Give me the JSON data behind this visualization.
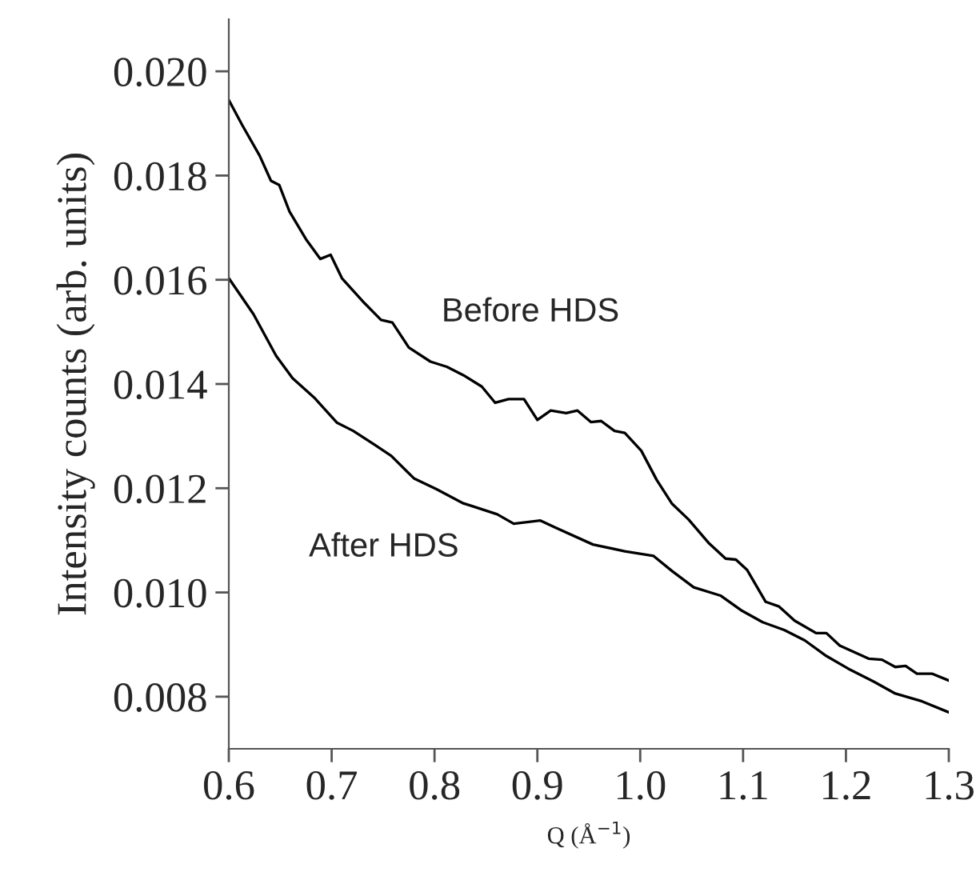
{
  "chart_data": {
    "type": "line",
    "xlabel": "Q (Å$^{−1}$)",
    "ylabel": "Intensity counts (arb. units)",
    "xlim": [
      0.6,
      1.3
    ],
    "xticks": [
      {
        "value": 0.6,
        "label": "0.6"
      },
      {
        "value": 0.7,
        "label": "0.7"
      },
      {
        "value": 0.8,
        "label": "0.8"
      },
      {
        "value": 0.9,
        "label": "0.9"
      },
      {
        "value": 1.0,
        "label": "1.0"
      },
      {
        "value": 1.1,
        "label": "1.1"
      },
      {
        "value": 1.2,
        "label": "1.2"
      },
      {
        "value": 1.3,
        "label": "1.3"
      }
    ],
    "ylim": [
      0.007,
      0.021
    ],
    "yticks": [
      {
        "value": 0.008,
        "label": "0.008"
      },
      {
        "value": 0.01,
        "label": "0.010"
      },
      {
        "value": 0.012,
        "label": "0.012"
      },
      {
        "value": 0.014,
        "label": "0.014"
      },
      {
        "value": 0.016,
        "label": "0.016"
      },
      {
        "value": 0.018,
        "label": "0.018"
      },
      {
        "value": 0.02,
        "label": "0.020"
      }
    ],
    "grid": false,
    "legend": false,
    "marker": "none",
    "line_style": "solid",
    "series": [
      {
        "name": "Before HDS",
        "color": "#000000",
        "x": [
          0.6,
          0.613,
          0.63,
          0.641,
          0.649,
          0.659,
          0.675,
          0.689,
          0.699,
          0.71,
          0.732,
          0.748,
          0.759,
          0.775,
          0.796,
          0.812,
          0.828,
          0.846,
          0.859,
          0.872,
          0.887,
          0.9,
          0.913,
          0.928,
          0.939,
          0.952,
          0.962,
          0.975,
          0.985,
          1.001,
          1.016,
          1.031,
          1.047,
          1.067,
          1.083,
          1.093,
          1.104,
          1.122,
          1.135,
          1.15,
          1.171,
          1.181,
          1.194,
          1.222,
          1.235,
          1.248,
          1.258,
          1.269,
          1.284,
          1.3
        ],
        "values": [
          0.01945,
          0.01897,
          0.01838,
          0.0179,
          0.01782,
          0.01731,
          0.01678,
          0.0164,
          0.01648,
          0.01603,
          0.01555,
          0.01523,
          0.01518,
          0.0147,
          0.01443,
          0.01433,
          0.01417,
          0.01395,
          0.01364,
          0.01371,
          0.01371,
          0.01331,
          0.01349,
          0.01344,
          0.01349,
          0.01327,
          0.01329,
          0.0131,
          0.01306,
          0.01272,
          0.01216,
          0.0117,
          0.0114,
          0.01094,
          0.01065,
          0.01063,
          0.01043,
          0.00982,
          0.00973,
          0.00946,
          0.00922,
          0.00922,
          0.00898,
          0.00873,
          0.00871,
          0.00857,
          0.00859,
          0.00844,
          0.00844,
          0.00831
        ]
      },
      {
        "name": "After HDS",
        "color": "#000000",
        "x": [
          0.6,
          0.624,
          0.646,
          0.662,
          0.683,
          0.705,
          0.721,
          0.742,
          0.758,
          0.78,
          0.802,
          0.828,
          0.836,
          0.861,
          0.877,
          0.903,
          0.918,
          0.954,
          0.985,
          1.013,
          1.031,
          1.052,
          1.078,
          1.098,
          1.119,
          1.14,
          1.16,
          1.181,
          1.202,
          1.227,
          1.248,
          1.274,
          1.3
        ],
        "values": [
          0.01603,
          0.01534,
          0.01454,
          0.01411,
          0.01374,
          0.01326,
          0.0131,
          0.01283,
          0.01262,
          0.01219,
          0.01198,
          0.01171,
          0.01166,
          0.0115,
          0.01132,
          0.01138,
          0.01124,
          0.01092,
          0.01079,
          0.0107,
          0.01041,
          0.0101,
          0.00994,
          0.00966,
          0.00943,
          0.00928,
          0.00908,
          0.00878,
          0.00854,
          0.00829,
          0.00806,
          0.00791,
          0.0077
        ]
      }
    ]
  }
}
